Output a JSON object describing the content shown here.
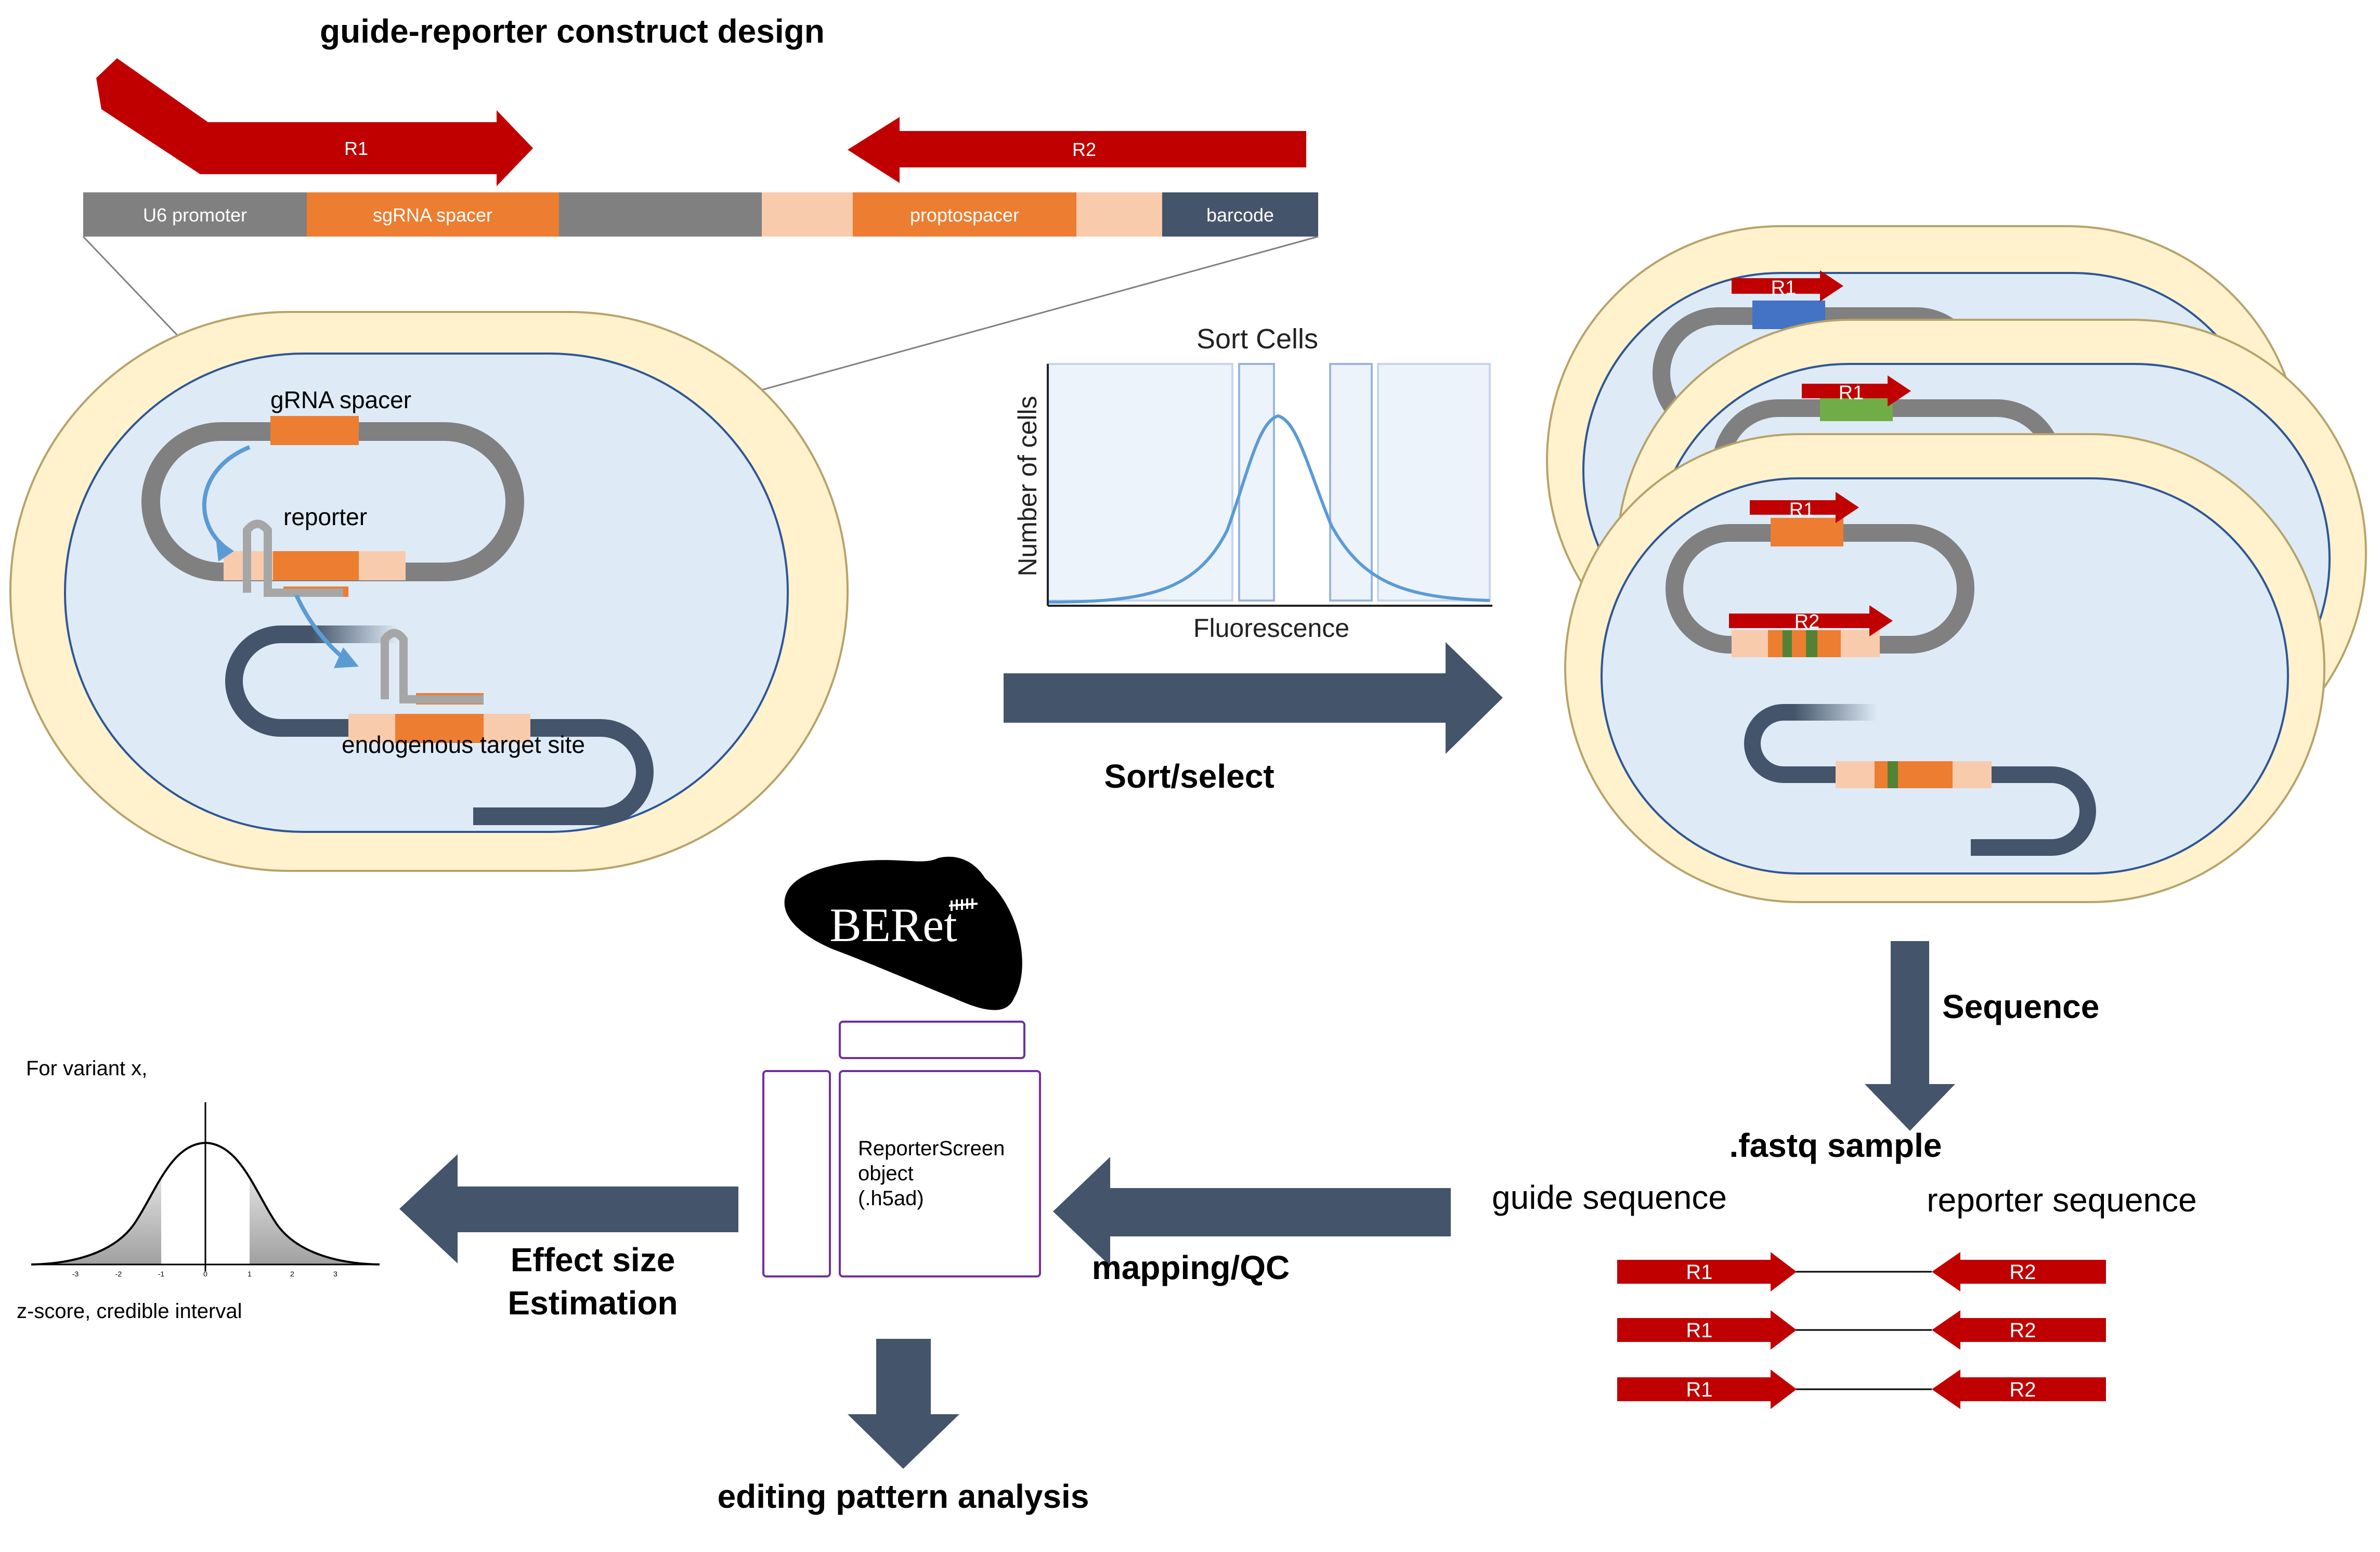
{
  "title": "guide-reporter construct design",
  "construct": {
    "read1": "R1",
    "read2": "R2",
    "segments": [
      "U6 promoter",
      "sgRNA spacer",
      "",
      "",
      "proptospacer",
      "",
      "barcode"
    ]
  },
  "cell_labels": {
    "spacer": "gRNA spacer",
    "reporter": "reporter",
    "target": "endogenous target site"
  },
  "sort_plot": {
    "title": "Sort Cells",
    "xlabel": "Fluorescence",
    "ylabel": "Number of cells"
  },
  "sorted_cells": {
    "read1": "R1",
    "read2": "R2"
  },
  "steps": {
    "sort": "Sort/select",
    "sequence": "Sequence",
    "fastq": ".fastq sample",
    "mapping": "mapping/QC",
    "effect_line1": "Effect size",
    "effect_line2": "Estimation",
    "editing": "editing pattern analysis"
  },
  "reads": {
    "guide": "guide sequence",
    "reporter": "reporter sequence",
    "pairs": [
      {
        "r1": "R1",
        "r2": "R2"
      },
      {
        "r1": "R1",
        "r2": "R2"
      },
      {
        "r1": "R1",
        "r2": "R2"
      }
    ]
  },
  "logo": {
    "text": "BERet"
  },
  "object": {
    "line1": "ReporterScreen",
    "line2": "object",
    "line3": "(.h5ad)"
  },
  "stats": {
    "variant": "For variant x,",
    "caption": "z-score, credible interval",
    "ticks": [
      "-3",
      "-2",
      "-1",
      "0",
      "1",
      "2",
      "3"
    ]
  },
  "colors": {
    "red": "#c00000",
    "orange": "#ed7d31",
    "peach": "#f8cbad",
    "gray": "#808080",
    "navy": "#44546a",
    "cream": "#fff2cc",
    "lightblue": "#deebf7",
    "blue": "#4472c4",
    "green": "#70ad47",
    "curve": "#5b9bd5"
  }
}
